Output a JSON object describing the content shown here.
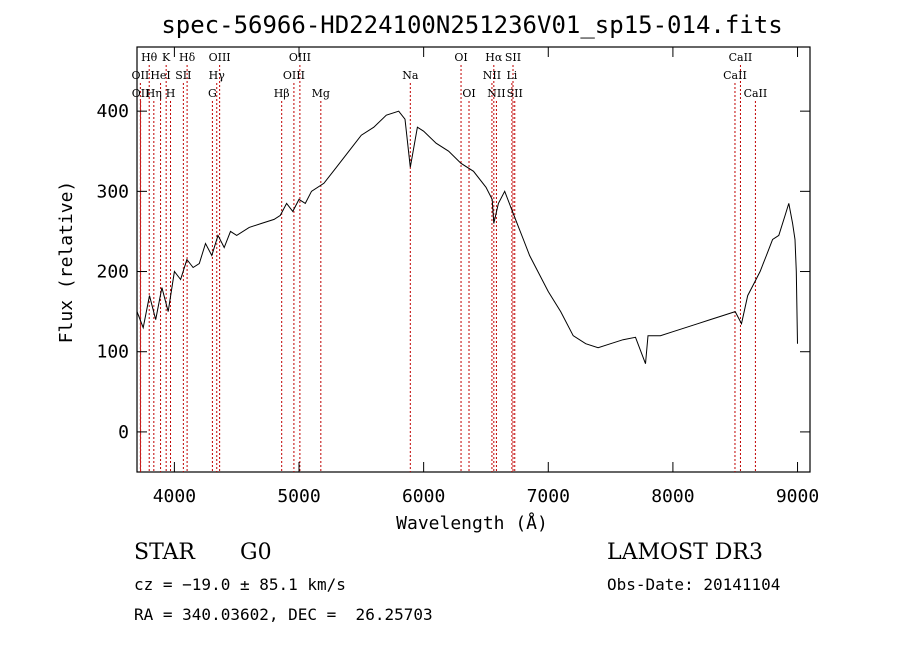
{
  "title": "spec-56966-HD224100N251236V01_sp15-014.fits",
  "info": {
    "class_label": "STAR",
    "subclass": "G0",
    "survey": "LAMOST DR3",
    "cz": "cz = −19.0 ± 85.1 km/s",
    "obs_date": "Obs-Date: 20141104",
    "coords": "RA = 340.03602, DEC =  26.25703"
  },
  "chart_data": {
    "type": "line",
    "title": "spec-56966-HD224100N251236V01_sp15-014.fits",
    "xlabel": "Wavelength (Å)",
    "ylabel": "Flux (relative)",
    "xlim": [
      3700,
      9100
    ],
    "ylim": [
      -50,
      480
    ],
    "xticks": [
      4000,
      5000,
      6000,
      7000,
      8000,
      9000
    ],
    "yticks": [
      0,
      100,
      200,
      300,
      400
    ],
    "grid": false,
    "line_color": "#000000",
    "marker_color": "#c00000",
    "lines": [
      {
        "label": "Hθ",
        "x": 3798,
        "row": 0
      },
      {
        "label": "OII",
        "x": 3727,
        "row": 1
      },
      {
        "label": "OII",
        "x": 3729,
        "row": 2
      },
      {
        "label": "Hη",
        "x": 3835,
        "row": 2
      },
      {
        "label": "HeI",
        "x": 3889,
        "row": 1
      },
      {
        "label": "K",
        "x": 3934,
        "row": 0
      },
      {
        "label": "H",
        "x": 3969,
        "row": 2
      },
      {
        "label": "SII",
        "x": 4072,
        "row": 1
      },
      {
        "label": "Hδ",
        "x": 4102,
        "row": 0
      },
      {
        "label": "OIII",
        "x": 4363,
        "row": 0
      },
      {
        "label": "Hγ",
        "x": 4340,
        "row": 1
      },
      {
        "label": "G",
        "x": 4305,
        "row": 2
      },
      {
        "label": "Hβ",
        "x": 4861,
        "row": 2
      },
      {
        "label": "OIII",
        "x": 5007,
        "row": 0
      },
      {
        "label": "OIII",
        "x": 4959,
        "row": 1
      },
      {
        "label": "Mg",
        "x": 5175,
        "row": 2
      },
      {
        "label": "Na",
        "x": 5893,
        "row": 1
      },
      {
        "label": "OI",
        "x": 6300,
        "row": 0
      },
      {
        "label": "OI",
        "x": 6364,
        "row": 2
      },
      {
        "label": "Hα",
        "x": 6563,
        "row": 0
      },
      {
        "label": "NII",
        "x": 6548,
        "row": 1
      },
      {
        "label": "NII",
        "x": 6584,
        "row": 2
      },
      {
        "label": "SII",
        "x": 6717,
        "row": 0
      },
      {
        "label": "Li",
        "x": 6708,
        "row": 1
      },
      {
        "label": "SII",
        "x": 6731,
        "row": 2
      },
      {
        "label": "CaII",
        "x": 8542,
        "row": 0
      },
      {
        "label": "CaII",
        "x": 8498,
        "row": 1
      },
      {
        "label": "CaII",
        "x": 8662,
        "row": 2
      }
    ],
    "spectrum": {
      "x": [
        3700,
        3750,
        3800,
        3850,
        3900,
        3950,
        4000,
        4050,
        4100,
        4150,
        4200,
        4250,
        4300,
        4350,
        4400,
        4450,
        4500,
        4600,
        4700,
        4800,
        4850,
        4900,
        4950,
        5000,
        5050,
        5100,
        5200,
        5300,
        5400,
        5500,
        5600,
        5700,
        5800,
        5850,
        5893,
        5950,
        6000,
        6100,
        6200,
        6300,
        6400,
        6500,
        6550,
        6563,
        6600,
        6650,
        6700,
        6750,
        6800,
        6850,
        6900,
        7000,
        7100,
        7200,
        7300,
        7400,
        7500,
        7600,
        7700,
        7780,
        7800,
        7900,
        8000,
        8100,
        8200,
        8300,
        8400,
        8500,
        8550,
        8600,
        8650,
        8700,
        8750,
        8800,
        8850,
        8900,
        8930,
        8960,
        8980,
        8990,
        9000
      ],
      "y": [
        150,
        130,
        170,
        140,
        180,
        150,
        200,
        190,
        215,
        205,
        210,
        235,
        220,
        245,
        230,
        250,
        245,
        255,
        260,
        265,
        270,
        285,
        275,
        290,
        285,
        300,
        310,
        330,
        350,
        370,
        380,
        395,
        400,
        390,
        330,
        380,
        375,
        360,
        350,
        335,
        325,
        305,
        290,
        260,
        285,
        300,
        280,
        260,
        240,
        220,
        205,
        175,
        150,
        120,
        110,
        105,
        110,
        115,
        118,
        85,
        120,
        120,
        125,
        130,
        135,
        140,
        145,
        150,
        135,
        170,
        185,
        200,
        220,
        240,
        245,
        270,
        285,
        260,
        240,
        200,
        110
      ]
    }
  }
}
